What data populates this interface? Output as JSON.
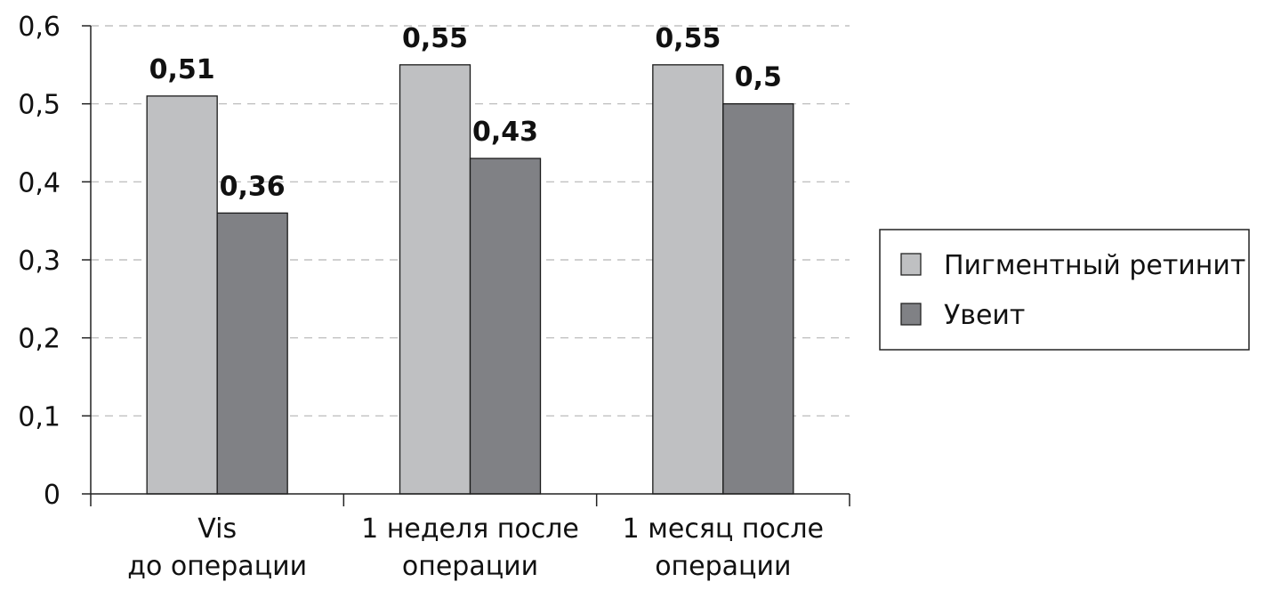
{
  "chart_data": {
    "type": "bar",
    "title": "",
    "xlabel": "",
    "ylabel": "",
    "categories": [
      [
        "Vis",
        "до операции"
      ],
      [
        "1 неделя после",
        "операции"
      ],
      [
        "1 месяц после",
        "операции"
      ]
    ],
    "series": [
      {
        "name": "Пигментный ретинит",
        "values": [
          0.51,
          0.55,
          0.55
        ],
        "labels": [
          "0,51",
          "0,55",
          "0,55"
        ],
        "color": "#bfc0c2"
      },
      {
        "name": "Увеит",
        "values": [
          0.36,
          0.43,
          0.5
        ],
        "labels": [
          "0,36",
          "0,43",
          "0,5"
        ],
        "color": "#808185"
      }
    ],
    "ylim": [
      0,
      0.6
    ],
    "yticks": [
      0,
      0.1,
      0.2,
      0.3,
      0.4,
      0.5,
      0.6
    ],
    "ytick_labels": [
      "0",
      "0,1",
      "0,2",
      "0,3",
      "0,4",
      "0,5",
      "0,6"
    ],
    "grid": true,
    "grid_style": "dashed",
    "legend_position": "right"
  }
}
